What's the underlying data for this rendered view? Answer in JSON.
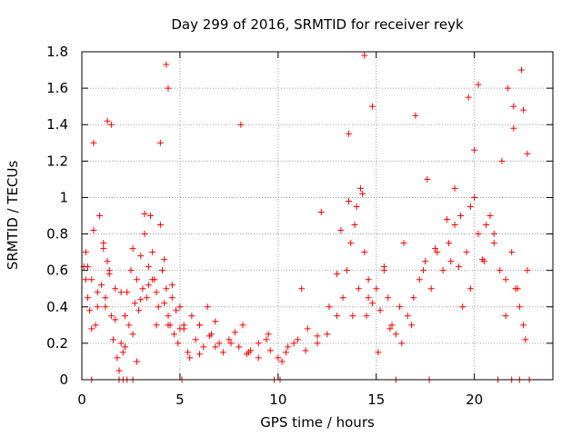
{
  "chart_data": {
    "type": "scatter",
    "title": "Day 299 of 2016, SRMTID for receiver reyk",
    "xlabel": "GPS time / hours",
    "ylabel": "SRMTID / TECUs",
    "xlim": [
      0,
      24
    ],
    "ylim": [
      0,
      1.8
    ],
    "xticks": [
      0,
      5,
      10,
      15,
      20
    ],
    "xtick_labels": [
      "0",
      "5",
      "10",
      "15",
      "20"
    ],
    "yticks": [
      0,
      0.2,
      0.4,
      0.6,
      0.8,
      1,
      1.2,
      1.4,
      1.6,
      1.8
    ],
    "ytick_labels": [
      "0",
      "0.2",
      "0.4",
      "0.6",
      "0.8",
      "1",
      "1.2",
      "1.4",
      "1.6",
      "1.8"
    ],
    "grid": true,
    "marker": "+",
    "color": "#ff0000",
    "series": [
      {
        "name": "SRMTID",
        "x": [
          0.1,
          0.2,
          0.3,
          0.4,
          0.5,
          0.6,
          0.7,
          0.8,
          0.9,
          1.0,
          1.1,
          1.2,
          1.3,
          1.4,
          1.5,
          1.6,
          1.7,
          1.8,
          1.9,
          2.0,
          2.1,
          2.2,
          2.3,
          2.4,
          2.5,
          2.6,
          2.7,
          2.8,
          2.9,
          3.0,
          3.1,
          3.2,
          3.3,
          3.4,
          3.5,
          3.6,
          3.7,
          3.8,
          3.9,
          4.0,
          4.1,
          4.2,
          4.3,
          4.4,
          4.5,
          4.6,
          4.7,
          4.8,
          4.9,
          5.0,
          5.2,
          5.4,
          5.6,
          5.8,
          6.0,
          6.2,
          6.4,
          6.6,
          6.8,
          7.0,
          7.5,
          8.0,
          8.2,
          8.5,
          9.0,
          9.5,
          10.0,
          10.5,
          11.0,
          11.5,
          12.0,
          12.5,
          13.0,
          13.3,
          13.5,
          13.7,
          13.9,
          14.0,
          14.2,
          14.4,
          14.6,
          14.8,
          15.0,
          15.2,
          15.4,
          15.6,
          15.8,
          16.0,
          16.3,
          16.6,
          16.9,
          17.2,
          17.5,
          17.8,
          18.1,
          18.4,
          18.7,
          19.0,
          19.3,
          19.6,
          19.8,
          20.0,
          20.2,
          20.5,
          20.8,
          21.0,
          21.3,
          21.6,
          21.9,
          22.1,
          22.3,
          22.5,
          22.7,
          0.2,
          0.5,
          0.8,
          1.1,
          1.4,
          1.7,
          2.2,
          2.6,
          3.0,
          3.4,
          3.8,
          4.2,
          4.6,
          5.0,
          5.5,
          6.0,
          6.5,
          7.2,
          7.8,
          8.4,
          9.0,
          9.6,
          10.2,
          10.8,
          11.4,
          12.0,
          12.6,
          13.2,
          13.6,
          14.1,
          14.5,
          15.1,
          15.7,
          16.2,
          16.8,
          17.4,
          18.0,
          18.6,
          19.2,
          19.8,
          20.4,
          21.0,
          21.6,
          22.2,
          22.6,
          0.3,
          1.2,
          2.0,
          2.8,
          3.6,
          4.4,
          5.2,
          6.0,
          6.8,
          7.6,
          8.6,
          9.4,
          10.4,
          11.2,
          12.2,
          13.0,
          13.8,
          14.6,
          15.4,
          16.4,
          17.6,
          18.8,
          19.4,
          20.6,
          21.4,
          22.0,
          0.6,
          1.5,
          3.2,
          4.0,
          4.4,
          8.1,
          13.6,
          14.3,
          14.8,
          17.0,
          19.0,
          19.7,
          20.0,
          21.7,
          22.0,
          22.5,
          22.7,
          1.3,
          4.3,
          14.4,
          20.2,
          22.4,
          0.5,
          1.9,
          2.1,
          2.3,
          2.6,
          5.1,
          9.8,
          10.1,
          16.0,
          17.7,
          21.2,
          21.9,
          22.3,
          22.8
        ],
        "y": [
          0.62,
          0.7,
          0.45,
          0.38,
          0.55,
          0.82,
          0.3,
          0.48,
          0.9,
          0.52,
          0.75,
          0.4,
          0.65,
          0.58,
          0.35,
          0.22,
          0.5,
          0.12,
          0.05,
          0.2,
          0.15,
          0.35,
          0.48,
          0.3,
          0.6,
          0.72,
          0.42,
          0.55,
          0.38,
          0.68,
          0.5,
          0.8,
          0.45,
          0.62,
          0.9,
          0.7,
          0.55,
          0.48,
          0.4,
          0.85,
          0.6,
          0.42,
          0.5,
          0.35,
          0.3,
          0.45,
          0.25,
          0.38,
          0.2,
          0.28,
          0.3,
          0.15,
          0.35,
          0.22,
          0.3,
          0.18,
          0.4,
          0.25,
          0.32,
          0.2,
          0.22,
          0.18,
          0.3,
          0.15,
          0.2,
          0.25,
          0.12,
          0.18,
          0.22,
          0.28,
          0.2,
          0.25,
          0.35,
          0.45,
          0.6,
          0.75,
          0.85,
          0.95,
          1.05,
          0.7,
          0.55,
          0.42,
          0.5,
          0.38,
          0.6,
          0.45,
          0.3,
          0.25,
          0.2,
          0.35,
          0.45,
          0.55,
          0.65,
          0.5,
          0.7,
          0.6,
          0.75,
          0.85,
          0.9,
          0.7,
          0.95,
          1.0,
          0.8,
          0.65,
          0.9,
          0.75,
          0.6,
          0.55,
          0.7,
          0.5,
          0.4,
          0.3,
          0.6,
          0.55,
          0.28,
          0.4,
          0.72,
          0.6,
          0.33,
          0.18,
          0.25,
          0.44,
          0.52,
          0.3,
          0.66,
          0.52,
          0.4,
          0.12,
          0.3,
          0.24,
          0.15,
          0.26,
          0.14,
          0.12,
          0.16,
          0.1,
          0.2,
          0.16,
          0.24,
          0.4,
          0.82,
          0.98,
          0.5,
          0.35,
          0.15,
          0.28,
          0.4,
          0.3,
          0.6,
          0.72,
          0.88,
          0.62,
          0.5,
          0.66,
          0.8,
          0.35,
          0.5,
          0.22,
          0.62,
          0.45,
          0.48,
          0.1,
          0.55,
          0.3,
          0.28,
          0.14,
          0.18,
          0.2,
          0.16,
          0.22,
          0.15,
          0.5,
          0.92,
          0.58,
          0.35,
          0.45,
          0.62,
          0.75,
          1.1,
          0.65,
          0.4,
          0.85,
          1.2,
          1.38,
          1.3,
          1.4,
          0.91,
          1.3,
          1.6,
          1.4,
          1.35,
          1.02,
          1.5,
          1.45,
          1.05,
          1.55,
          1.26,
          1.6,
          1.5,
          1.48,
          1.24,
          1.42,
          1.73,
          1.78,
          1.62,
          1.7,
          0,
          0,
          0,
          0,
          0,
          0,
          0,
          0,
          0,
          0,
          0,
          0,
          0,
          0
        ]
      }
    ]
  }
}
